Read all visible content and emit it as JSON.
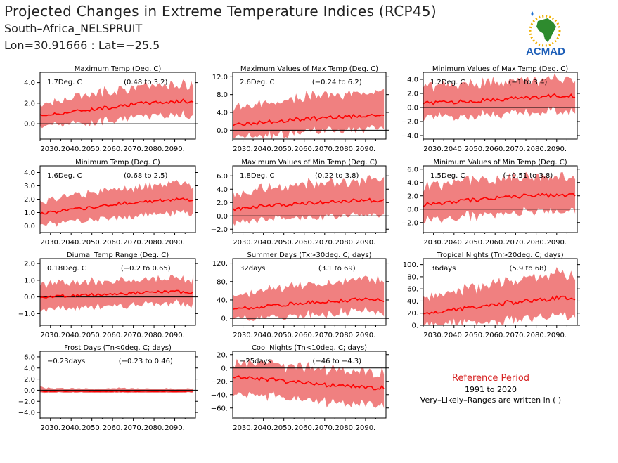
{
  "header": {
    "title": "Projected Changes in Extreme Temperature Indices (RCP45)",
    "location": "South–Africa_NELSPRUIT",
    "coords": "Lon=30.91666 : Lat=−25.5"
  },
  "logo": {
    "text": "ACMAD",
    "icon": "acmad-africa-logo-icon"
  },
  "reference": {
    "title": "Reference Period",
    "years": "1991 to 2020",
    "note": "Very–Likely–Ranges are written in ( )"
  },
  "colors": {
    "band": "#f08080",
    "line": "#ff0000",
    "zero_line": "#000000",
    "ref_title": "#d62020"
  },
  "chart_data": [
    {
      "type": "area",
      "title": "Maximum Temp (Deg. C)",
      "change": "1.7Deg. C",
      "range": "(0.48 to 3.2)",
      "xlim": [
        2025,
        2100
      ],
      "ylim": [
        -1.5,
        5.0
      ],
      "yticks": [
        0,
        2,
        4
      ],
      "ytick_labels": [
        "0.0",
        "2.0",
        "4.0"
      ],
      "xticks": [
        2030,
        2040,
        2050,
        2060,
        2070,
        2080,
        2090
      ],
      "xtick_labels": [
        "2030.",
        "2040.",
        "2050.",
        "2060.",
        "2070.",
        "2080.",
        "2090."
      ],
      "x": [
        2025,
        2035,
        2045,
        2055,
        2065,
        2075,
        2085,
        2095,
        2099
      ],
      "median": [
        0.8,
        1.0,
        1.3,
        1.5,
        1.8,
        2.0,
        2.1,
        2.2,
        2.1
      ],
      "lower": [
        -0.1,
        0.2,
        0.3,
        0.5,
        0.8,
        1.0,
        1.1,
        1.0,
        1.0
      ],
      "upper": [
        1.6,
        2.0,
        2.4,
        2.8,
        3.1,
        3.3,
        3.4,
        3.5,
        3.3
      ]
    },
    {
      "type": "area",
      "title": "Maximum Values of Max Temp (Deg. C)",
      "change": "2.6Deg. C",
      "range": "(−0.24 to 6.2)",
      "xlim": [
        2025,
        2100
      ],
      "ylim": [
        -2.0,
        13.0
      ],
      "yticks": [
        0,
        4,
        8,
        12
      ],
      "ytick_labels": [
        "0.0",
        "4.0",
        "8.0",
        "12.0"
      ],
      "xticks": [
        2030,
        2040,
        2050,
        2060,
        2070,
        2080,
        2090
      ],
      "xtick_labels": [
        "2030.",
        "2040.",
        "2050.",
        "2060.",
        "2070.",
        "2080.",
        "2090."
      ],
      "x": [
        2025,
        2035,
        2045,
        2055,
        2065,
        2075,
        2085,
        2095,
        2099
      ],
      "median": [
        1.2,
        1.6,
        2.0,
        2.4,
        2.6,
        3.0,
        3.2,
        3.3,
        3.0
      ],
      "lower": [
        -1.0,
        -0.6,
        -0.4,
        0.0,
        0.3,
        0.6,
        0.8,
        0.9,
        0.7
      ],
      "upper": [
        4.0,
        4.8,
        5.5,
        6.2,
        6.6,
        7.0,
        7.3,
        7.5,
        7.0
      ]
    },
    {
      "type": "area",
      "title": "Minimum Values of Max Temp (Deg. C)",
      "change": "1.2Deg. C",
      "range": "(−1 to 3.4)",
      "xlim": [
        2025,
        2100
      ],
      "ylim": [
        -4.5,
        5.0
      ],
      "yticks": [
        -4,
        -2,
        0,
        2,
        4
      ],
      "ytick_labels": [
        "−4.0",
        "−2.0",
        "0.0",
        "2.0",
        "4.0"
      ],
      "xticks": [
        2030,
        2040,
        2050,
        2060,
        2070,
        2080,
        2090
      ],
      "xtick_labels": [
        "2030.",
        "2040.",
        "2050.",
        "2060.",
        "2070.",
        "2080.",
        "2090."
      ],
      "x": [
        2025,
        2035,
        2045,
        2055,
        2065,
        2075,
        2085,
        2095,
        2099
      ],
      "median": [
        0.6,
        0.7,
        0.9,
        1.0,
        1.2,
        1.4,
        1.6,
        1.7,
        1.6
      ],
      "lower": [
        -1.2,
        -1.0,
        -0.9,
        -0.7,
        -0.5,
        -0.3,
        -0.2,
        -0.1,
        -0.2
      ],
      "upper": [
        2.4,
        2.6,
        2.8,
        3.0,
        3.2,
        3.4,
        3.5,
        3.6,
        3.4
      ]
    },
    {
      "type": "area",
      "title": "Minimum Temp (Deg. C)",
      "change": "1.6Deg. C",
      "range": "(0.68 to 2.5)",
      "xlim": [
        2025,
        2100
      ],
      "ylim": [
        -0.5,
        4.5
      ],
      "yticks": [
        0,
        1,
        2,
        3,
        4
      ],
      "ytick_labels": [
        "0.0",
        "1.0",
        "2.0",
        "3.0",
        "4.0"
      ],
      "xticks": [
        2030,
        2040,
        2050,
        2060,
        2070,
        2080,
        2090
      ],
      "xtick_labels": [
        "2030.",
        "2040.",
        "2050.",
        "2060.",
        "2070.",
        "2080.",
        "2090."
      ],
      "x": [
        2025,
        2035,
        2045,
        2055,
        2065,
        2075,
        2085,
        2095,
        2099
      ],
      "median": [
        0.9,
        1.1,
        1.3,
        1.5,
        1.7,
        1.8,
        1.9,
        2.0,
        1.9
      ],
      "lower": [
        0.2,
        0.4,
        0.5,
        0.7,
        0.9,
        1.0,
        1.1,
        1.1,
        1.1
      ],
      "upper": [
        1.6,
        1.9,
        2.1,
        2.4,
        2.6,
        2.7,
        2.8,
        2.9,
        2.8
      ]
    },
    {
      "type": "area",
      "title": "Maximum Values of Min Temp (Deg. C)",
      "change": "1.8Deg. C",
      "range": "(0.22 to 3.8)",
      "xlim": [
        2025,
        2100
      ],
      "ylim": [
        -2.5,
        7.5
      ],
      "yticks": [
        -2,
        0,
        2,
        4,
        6
      ],
      "ytick_labels": [
        "−2.0",
        "0.0",
        "2.0",
        "4.0",
        "6.0"
      ],
      "xticks": [
        2030,
        2040,
        2050,
        2060,
        2070,
        2080,
        2090
      ],
      "xtick_labels": [
        "2030.",
        "2040.",
        "2050.",
        "2060.",
        "2070.",
        "2080.",
        "2090."
      ],
      "x": [
        2025,
        2035,
        2045,
        2055,
        2065,
        2075,
        2085,
        2095,
        2099
      ],
      "median": [
        1.0,
        1.3,
        1.5,
        1.8,
        2.0,
        2.2,
        2.3,
        2.3,
        2.2
      ],
      "lower": [
        -0.6,
        -0.4,
        -0.2,
        0.1,
        0.3,
        0.5,
        0.6,
        0.6,
        0.5
      ],
      "upper": [
        2.8,
        3.2,
        3.6,
        4.0,
        4.3,
        4.5,
        4.6,
        4.7,
        4.5
      ]
    },
    {
      "type": "area",
      "title": "Minimum Values of Min Temp (Deg. C)",
      "change": "1.5Deg. C",
      "range": "(−0.51 to 3.8)",
      "xlim": [
        2025,
        2100
      ],
      "ylim": [
        -3.5,
        6.5
      ],
      "yticks": [
        -2,
        0,
        2,
        4,
        6
      ],
      "ytick_labels": [
        "−2.0",
        "0.0",
        "2.0",
        "4.0",
        "6.0"
      ],
      "xticks": [
        2030,
        2040,
        2050,
        2060,
        2070,
        2080,
        2090
      ],
      "xtick_labels": [
        "2030.",
        "2040.",
        "2050.",
        "2060.",
        "2070.",
        "2080.",
        "2090."
      ],
      "x": [
        2025,
        2035,
        2045,
        2055,
        2065,
        2075,
        2085,
        2095,
        2099
      ],
      "median": [
        0.7,
        1.0,
        1.3,
        1.5,
        1.8,
        2.0,
        2.1,
        2.2,
        2.1
      ],
      "lower": [
        -1.2,
        -1.0,
        -0.7,
        -0.4,
        -0.2,
        0.0,
        0.1,
        0.1,
        0.0
      ],
      "upper": [
        2.8,
        3.2,
        3.5,
        3.8,
        4.0,
        4.2,
        4.3,
        4.4,
        4.2
      ]
    },
    {
      "type": "area",
      "title": "Diurnal Temp Range (Deg. C)",
      "change": "0.18Deg. C",
      "range": "(−0.2 to 0.65)",
      "xlim": [
        2025,
        2100
      ],
      "ylim": [
        -1.7,
        2.3
      ],
      "yticks": [
        -1,
        0,
        1,
        2
      ],
      "ytick_labels": [
        "−1.0",
        "0.0",
        "1.0",
        "2.0"
      ],
      "xticks": [
        2030,
        2040,
        2050,
        2060,
        2070,
        2080,
        2090
      ],
      "xtick_labels": [
        "2030.",
        "2040.",
        "2050.",
        "2060.",
        "2070.",
        "2080.",
        "2090."
      ],
      "x": [
        2025,
        2035,
        2045,
        2055,
        2065,
        2075,
        2085,
        2095,
        2099
      ],
      "median": [
        0.0,
        0.05,
        0.1,
        0.15,
        0.2,
        0.25,
        0.3,
        0.3,
        0.3
      ],
      "lower": [
        -0.6,
        -0.55,
        -0.5,
        -0.45,
        -0.4,
        -0.35,
        -0.3,
        -0.3,
        -0.3
      ],
      "upper": [
        0.6,
        0.65,
        0.7,
        0.75,
        0.8,
        0.85,
        0.9,
        0.9,
        0.9
      ]
    },
    {
      "type": "area",
      "title": "Summer Days (Tx>30deg. C; days)",
      "change": "32days",
      "range": "(3.1 to 69)",
      "xlim": [
        2025,
        2100
      ],
      "ylim": [
        -15,
        130
      ],
      "yticks": [
        0,
        40,
        80,
        120
      ],
      "ytick_labels": [
        "0.",
        "40.",
        "80.",
        "120."
      ],
      "xticks": [
        2030,
        2040,
        2050,
        2060,
        2070,
        2080,
        2090
      ],
      "xtick_labels": [
        "2030.",
        "2040.",
        "2050.",
        "2060.",
        "2070.",
        "2080.",
        "2090."
      ],
      "x": [
        2025,
        2035,
        2045,
        2055,
        2065,
        2075,
        2085,
        2095,
        2099
      ],
      "median": [
        20,
        24,
        28,
        32,
        35,
        38,
        40,
        42,
        40
      ],
      "lower": [
        3,
        6,
        9,
        12,
        15,
        18,
        20,
        21,
        20
      ],
      "upper": [
        45,
        52,
        58,
        64,
        68,
        72,
        75,
        77,
        74
      ]
    },
    {
      "type": "area",
      "title": "Tropical Nights (Tn>20deg. C; days)",
      "change": "36days",
      "range": "(5.9 to 68)",
      "xlim": [
        2025,
        2100
      ],
      "ylim": [
        0,
        110
      ],
      "yticks": [
        0,
        20,
        40,
        60,
        80,
        100
      ],
      "ytick_labels": [
        "0.",
        "20.",
        "40.",
        "60.",
        "80.",
        "100."
      ],
      "xticks": [
        2030,
        2040,
        2050,
        2060,
        2070,
        2080,
        2090
      ],
      "xtick_labels": [
        "2030.",
        "2040.",
        "2050.",
        "2060.",
        "2070.",
        "2080.",
        "2090."
      ],
      "x": [
        2025,
        2035,
        2045,
        2055,
        2065,
        2075,
        2085,
        2095,
        2099
      ],
      "median": [
        18,
        23,
        28,
        33,
        37,
        40,
        43,
        45,
        43
      ],
      "lower": [
        3,
        6,
        9,
        12,
        15,
        18,
        20,
        21,
        20
      ],
      "upper": [
        38,
        46,
        54,
        60,
        65,
        70,
        74,
        76,
        73
      ]
    },
    {
      "type": "area",
      "title": "Frost Days (Tn<0deg. C; days)",
      "change": "−0.23days",
      "range": "(−0.23 to 0.46)",
      "xlim": [
        2025,
        2100
      ],
      "ylim": [
        -5.0,
        7.0
      ],
      "yticks": [
        -4,
        -2,
        0,
        2,
        4,
        6
      ],
      "ytick_labels": [
        "−4.0",
        "−2.0",
        "0.0",
        "2.0",
        "4.0",
        "6.0"
      ],
      "xticks": [
        2030,
        2040,
        2050,
        2060,
        2070,
        2080,
        2090
      ],
      "xtick_labels": [
        "2030.",
        "2040.",
        "2050.",
        "2060.",
        "2070.",
        "2080.",
        "2090."
      ],
      "x": [
        2025,
        2035,
        2045,
        2055,
        2065,
        2075,
        2085,
        2095,
        2099
      ],
      "median": [
        -0.2,
        -0.2,
        -0.2,
        -0.2,
        -0.2,
        -0.2,
        -0.2,
        -0.2,
        -0.2
      ],
      "lower": [
        -0.4,
        -0.4,
        -0.4,
        -0.4,
        -0.4,
        -0.4,
        -0.4,
        -0.4,
        -0.4
      ],
      "upper": [
        0.4,
        0.2,
        0.2,
        0.2,
        0.3,
        0.2,
        0.2,
        0.2,
        0.2
      ]
    },
    {
      "type": "area",
      "title": "Cool Nights (Tn<10deg. C; days)",
      "change": "−25days",
      "range": "(−46 to −4.3)",
      "xlim": [
        2025,
        2100
      ],
      "ylim": [
        -75,
        25
      ],
      "yticks": [
        -60,
        -40,
        -20,
        0,
        20
      ],
      "ytick_labels": [
        "−60.",
        "−40.",
        "−20.",
        "0.",
        "20."
      ],
      "xticks": [
        2030,
        2040,
        2050,
        2060,
        2070,
        2080,
        2090
      ],
      "xtick_labels": [
        "2030.",
        "2040.",
        "2050.",
        "2060.",
        "2070.",
        "2080.",
        "2090."
      ],
      "x": [
        2025,
        2035,
        2045,
        2055,
        2065,
        2075,
        2085,
        2095,
        2099
      ],
      "median": [
        -12,
        -15,
        -18,
        -21,
        -24,
        -26,
        -28,
        -30,
        -29
      ],
      "lower": [
        -32,
        -36,
        -40,
        -43,
        -46,
        -48,
        -50,
        -52,
        -50
      ],
      "upper": [
        5,
        2,
        -1,
        -4,
        -7,
        -9,
        -11,
        -12,
        -11
      ]
    }
  ]
}
